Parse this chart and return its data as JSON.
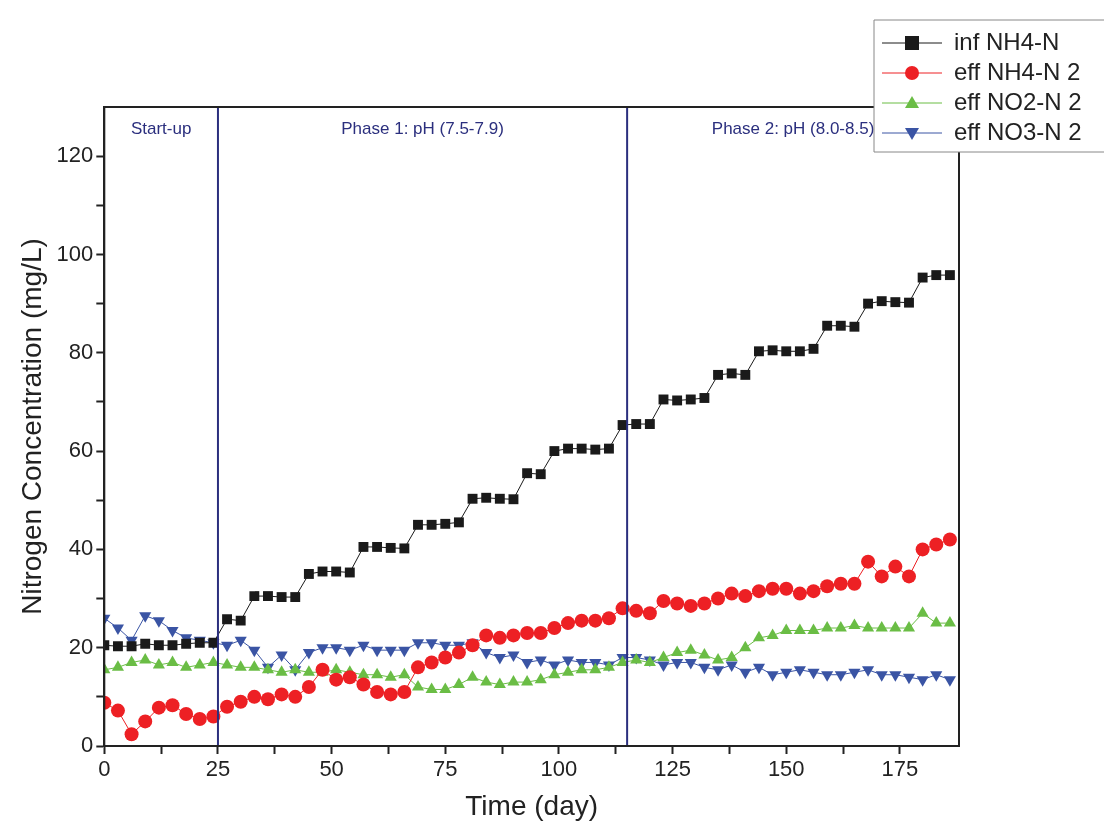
{
  "chart_data": {
    "type": "line",
    "xlabel": "Time (day)",
    "ylabel": "Nitrogen Concentration (mg/L)",
    "x": [
      0,
      3,
      6,
      9,
      12,
      15,
      18,
      21,
      24,
      27,
      30,
      33,
      36,
      39,
      42,
      45,
      48,
      51,
      54,
      57,
      60,
      63,
      66,
      69,
      72,
      75,
      78,
      81,
      84,
      87,
      90,
      93,
      96,
      99,
      102,
      105,
      108,
      111,
      114,
      117,
      120,
      123,
      126,
      129,
      132,
      135,
      138,
      141,
      144,
      147,
      150,
      153,
      156,
      159,
      162,
      165,
      168,
      171,
      174,
      177,
      180,
      183,
      186
    ],
    "series": [
      {
        "name": "inf NH4-N",
        "color": "#1a1a1a",
        "marker": "square",
        "values": [
          20.5,
          20.3,
          20.3,
          20.8,
          20.5,
          20.5,
          20.8,
          21,
          21,
          25.8,
          25.5,
          30.5,
          30.5,
          30.3,
          30.3,
          35,
          35.5,
          35.5,
          35.3,
          40.5,
          40.5,
          40.3,
          40.2,
          45,
          45,
          45.2,
          45.5,
          50.3,
          50.5,
          50.3,
          50.2,
          55.5,
          55.3,
          60,
          60.5,
          60.5,
          60.3,
          60.5,
          65.3,
          65.5,
          65.5,
          70.5,
          70.3,
          70.5,
          70.8,
          75.5,
          75.8,
          75.5,
          80.3,
          80.5,
          80.3,
          80.3,
          80.8,
          85.5,
          85.5,
          85.3,
          90,
          90.5,
          90.3,
          90.2,
          95.3,
          95.8,
          95.8
        ]
      },
      {
        "name": "eff NH4-N 2",
        "color": "#ed2024",
        "marker": "circle",
        "values": [
          8.8,
          7.2,
          2.4,
          5,
          7.8,
          8.3,
          6.5,
          5.5,
          6,
          8,
          9,
          10,
          9.5,
          10.5,
          10,
          12,
          15.5,
          13.5,
          14,
          12.5,
          11,
          10.5,
          11,
          16,
          17,
          18,
          19,
          20.5,
          22.5,
          22,
          22.5,
          23,
          23,
          24,
          25,
          25.5,
          25.5,
          26,
          28,
          27.5,
          27,
          29.5,
          29,
          28.5,
          29,
          30,
          31,
          30.5,
          31.5,
          32,
          32,
          31,
          31.5,
          32.5,
          33,
          33,
          37.5,
          34.5,
          36.5,
          34.5,
          40,
          41,
          42
        ]
      },
      {
        "name": "eff NO2-N 2",
        "color": "#6abd45",
        "marker": "triangle",
        "values": [
          15.5,
          16,
          17,
          17.5,
          16.5,
          17,
          16,
          16.5,
          17,
          16.5,
          16,
          16,
          15.5,
          15,
          15.5,
          15,
          15,
          15.5,
          15,
          14.5,
          14.5,
          14,
          14.5,
          12,
          11.5,
          11.5,
          12.5,
          14,
          13,
          12.5,
          13,
          13,
          13.5,
          14.5,
          15,
          15.5,
          15.5,
          16,
          17,
          17.5,
          17,
          18,
          19,
          19.5,
          18.5,
          17.5,
          18,
          20,
          22,
          22.5,
          23.5,
          23.5,
          23.5,
          24,
          24,
          24.5,
          24,
          24,
          24,
          24,
          27,
          25,
          25
        ]
      },
      {
        "name": "eff NO3-N 2",
        "color": "#3a54a4",
        "marker": "triangle-down",
        "values": [
          26,
          24,
          21.5,
          26.5,
          25.5,
          23.5,
          22,
          21.5,
          21,
          20.5,
          21.5,
          19.5,
          16,
          18.5,
          15.5,
          19,
          20,
          20,
          19.5,
          20.5,
          19.5,
          19.5,
          19.5,
          21,
          21,
          20.5,
          20.5,
          21,
          19,
          18,
          18.5,
          17,
          17.5,
          16.5,
          17.5,
          17,
          17,
          16.5,
          18,
          18,
          17.5,
          16.5,
          17,
          17,
          16,
          15.5,
          16.5,
          15,
          16,
          14.5,
          15,
          15.5,
          15,
          14.5,
          14.5,
          15,
          15.5,
          14.5,
          14.5,
          14,
          13.5,
          14.5,
          13.5
        ]
      }
    ],
    "xlim": [
      0,
      188
    ],
    "xticks": [
      0,
      {
        "value": 12.5,
        "label": null
      },
      25,
      {
        "value": 37.5,
        "label": null
      },
      50,
      {
        "value": 62.5,
        "label": null
      },
      75,
      {
        "value": 87.5,
        "label": null
      },
      100,
      {
        "value": 112.5,
        "label": null
      },
      125,
      {
        "value": 137.5,
        "label": null
      },
      150,
      {
        "value": 162.5,
        "label": null
      },
      175
    ],
    "ylim": [
      0,
      130
    ],
    "yticks": [
      0,
      {
        "value": 10,
        "label": null
      },
      20,
      {
        "value": 30,
        "label": null
      },
      40,
      {
        "value": 50,
        "label": null
      },
      60,
      {
        "value": 70,
        "label": null
      },
      80,
      {
        "value": 90,
        "label": null
      },
      100,
      {
        "value": 110,
        "label": null
      },
      120
    ],
    "ref_lines": [
      {
        "axis": "x",
        "value": 25,
        "color": "#2b2f7e"
      },
      {
        "axis": "x",
        "value": 115,
        "color": "#2b2f7e"
      }
    ],
    "annotations": [
      "Start-up",
      "Phase 1: pH (7.5-7.9)",
      "Phase 2: pH (8.0-8.5)"
    ],
    "grid": false,
    "legend": "top right",
    "line_style": "solid"
  }
}
